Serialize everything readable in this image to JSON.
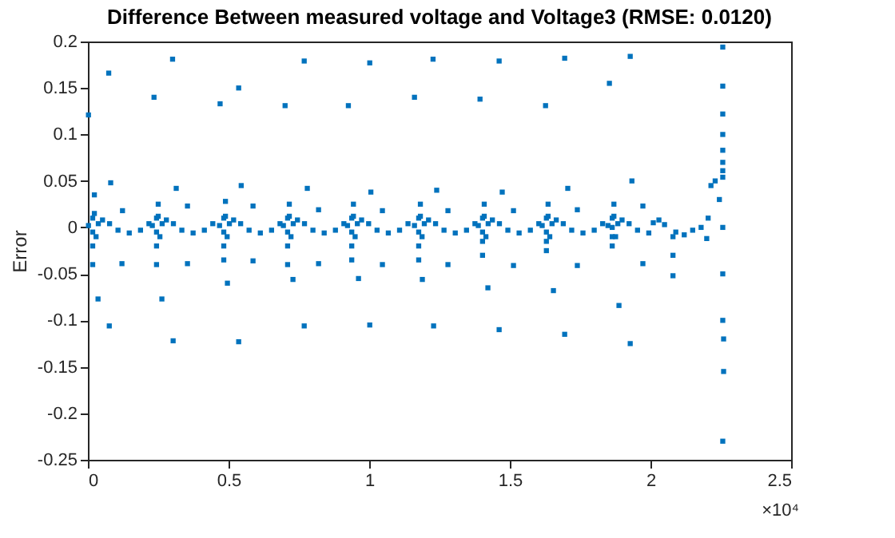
{
  "chart_data": {
    "type": "scatter",
    "title": "Difference Between measured voltage and Voltage3 (RMSE: 0.0120)",
    "ylabel": "Error",
    "annotations": [
      "×10⁴"
    ],
    "xlim": [
      0,
      2.5
    ],
    "ylim": [
      -0.25,
      0.2
    ],
    "xticks": [
      0,
      0.5,
      1,
      1.5,
      2,
      2.5
    ],
    "yticks": [
      -0.25,
      -0.2,
      -0.15,
      -0.1,
      -0.05,
      0,
      0.05,
      0.1,
      0.15,
      0.2
    ],
    "grid": false,
    "marker": "square",
    "series": [
      {
        "color": "#0072bd",
        "x": [
          0.002,
          0.074,
          0.235,
          0.301,
          0.47,
          0.536,
          0.701,
          0.769,
          0.926,
          1.002,
          1.161,
          1.227,
          1.394,
          1.462,
          1.627,
          1.695,
          1.854,
          1.928,
          2.257,
          2.257,
          2.257,
          2.257,
          2.257,
          2.257,
          2.257,
          2.257,
          0.081,
          0.123,
          0.314,
          0.354,
          0.545,
          0.587,
          0.78,
          0.82,
          1.006,
          1.047,
          1.24,
          1.28,
          1.473,
          1.513,
          1.706,
          1.74,
          1.934,
          1.973,
          0.121,
          0.354,
          0.587,
          0.82,
          1.047,
          1.28,
          1.513,
          1.74,
          1.973,
          0.036,
          0.076,
          0.263,
          0.303,
          0.496,
          0.536,
          0.729,
          0.769,
          0.962,
          1.002,
          1.189,
          1.229,
          1.422,
          1.462,
          1.655,
          1.695,
          1.888,
          1.928,
          2.257
        ],
        "values": [
          0.121,
          0.166,
          0.14,
          0.181,
          0.133,
          0.15,
          0.131,
          0.179,
          0.131,
          0.177,
          0.14,
          0.181,
          0.138,
          0.179,
          0.131,
          0.182,
          0.155,
          0.184,
          0.194,
          0.152,
          0.122,
          0.1,
          0.083,
          0.07,
          0.061,
          0.054,
          0.048,
          0.018,
          0.042,
          0.023,
          0.045,
          0.023,
          0.042,
          0.019,
          0.038,
          0.018,
          0.04,
          0.018,
          0.038,
          0.018,
          0.042,
          0.019,
          0.05,
          0.023,
          -0.039,
          -0.039,
          -0.036,
          -0.039,
          -0.04,
          -0.04,
          -0.041,
          -0.041,
          -0.039,
          -0.077,
          -0.106,
          -0.077,
          -0.122,
          -0.06,
          -0.123,
          -0.056,
          -0.106,
          -0.055,
          -0.105,
          -0.056,
          -0.106,
          -0.065,
          -0.11,
          -0.068,
          -0.115,
          -0.084,
          -0.125,
          -0.23
        ]
      },
      {
        "color": "#0072bd",
        "x": [
          0.002,
          0.017,
          0.017,
          0.017,
          0.017,
          0.023,
          0.023,
          0.029,
          0.037,
          0.052,
          0.077,
          0.107,
          0.147,
          0.187,
          0.217,
          0.229,
          0.244,
          0.244,
          0.244,
          0.244,
          0.25,
          0.25,
          0.256,
          0.264,
          0.279,
          0.304,
          0.334,
          0.374,
          0.414,
          0.444,
          0.468,
          0.483,
          0.483,
          0.483,
          0.483,
          0.489,
          0.489,
          0.495,
          0.503,
          0.518,
          0.543,
          0.573,
          0.613,
          0.653,
          0.683,
          0.695,
          0.71,
          0.71,
          0.71,
          0.71,
          0.716,
          0.716,
          0.722,
          0.73,
          0.745,
          0.77,
          0.8,
          0.84,
          0.88,
          0.91,
          0.923,
          0.938,
          0.938,
          0.938,
          0.938,
          0.944,
          0.944,
          0.95,
          0.958,
          0.973,
          0.998,
          1.028,
          1.068,
          1.108,
          1.138,
          1.161,
          1.176,
          1.176,
          1.176,
          1.176,
          1.182,
          1.182,
          1.188,
          1.196,
          1.211,
          1.236,
          1.266,
          1.306,
          1.346,
          1.376,
          1.388,
          1.403,
          1.403,
          1.403,
          1.403,
          1.409,
          1.409,
          1.415,
          1.423,
          1.438,
          1.463,
          1.493,
          1.533,
          1.573,
          1.603,
          1.615,
          1.63,
          1.63,
          1.63,
          1.63,
          1.636,
          1.636,
          1.642,
          1.65,
          1.665,
          1.69,
          1.72,
          1.76,
          1.8,
          1.83,
          1.849,
          1.864,
          1.864,
          1.864,
          1.864,
          1.87,
          1.87,
          1.876,
          1.884,
          1.899,
          1.924,
          1.954,
          1.994,
          2.01,
          2.03,
          2.05,
          2.08,
          2.08,
          2.08,
          2.09,
          2.12,
          2.15,
          2.18,
          2.2,
          2.205,
          2.215,
          2.23,
          2.245,
          2.257,
          2.257,
          2.257,
          2.26,
          2.26
        ],
        "values": [
          0.002,
          -0.04,
          -0.02,
          -0.005,
          0.01,
          0.035,
          0.015,
          -0.01,
          0.004,
          0.008,
          0.004,
          -0.003,
          -0.006,
          -0.003,
          0.004,
          0.002,
          -0.04,
          -0.02,
          -0.005,
          0.01,
          0.025,
          0.012,
          -0.01,
          0.004,
          0.008,
          0.004,
          -0.003,
          -0.006,
          -0.003,
          0.004,
          0.002,
          -0.035,
          -0.02,
          -0.005,
          0.01,
          0.028,
          0.012,
          -0.01,
          0.004,
          0.008,
          0.004,
          -0.003,
          -0.006,
          -0.003,
          0.004,
          0.002,
          -0.04,
          -0.02,
          -0.005,
          0.01,
          0.025,
          0.012,
          -0.01,
          0.004,
          0.008,
          0.004,
          -0.003,
          -0.006,
          -0.003,
          0.004,
          0.002,
          -0.035,
          -0.02,
          -0.005,
          0.01,
          0.025,
          0.012,
          -0.01,
          0.004,
          0.008,
          0.004,
          -0.003,
          -0.006,
          -0.003,
          0.004,
          0.002,
          -0.035,
          -0.02,
          -0.005,
          0.01,
          0.025,
          0.012,
          -0.01,
          0.004,
          0.008,
          0.004,
          -0.003,
          -0.006,
          -0.003,
          0.004,
          0.002,
          -0.03,
          -0.015,
          -0.005,
          0.01,
          0.025,
          0.012,
          -0.01,
          0.004,
          0.008,
          0.004,
          -0.003,
          -0.006,
          -0.003,
          0.004,
          0.002,
          -0.025,
          -0.015,
          -0.005,
          0.01,
          0.025,
          0.012,
          -0.01,
          0.004,
          0.008,
          0.004,
          -0.003,
          -0.006,
          -0.003,
          0.004,
          0.002,
          -0.02,
          -0.01,
          0.0,
          0.01,
          0.025,
          0.012,
          -0.01,
          0.004,
          0.008,
          0.004,
          -0.003,
          -0.006,
          0.005,
          0.008,
          0.003,
          -0.052,
          -0.03,
          -0.01,
          -0.005,
          -0.008,
          -0.003,
          0.0,
          -0.012,
          0.01,
          0.045,
          0.05,
          0.03,
          0.0,
          -0.05,
          -0.1,
          -0.155,
          -0.12
        ]
      }
    ]
  }
}
